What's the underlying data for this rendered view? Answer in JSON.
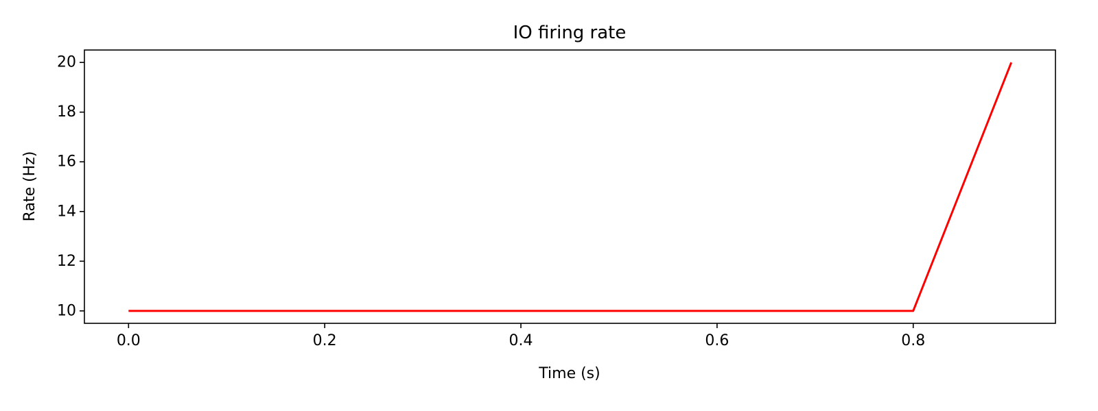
{
  "chart_data": {
    "type": "line",
    "title": "IO firing rate",
    "xlabel": "Time (s)",
    "ylabel": "Rate (Hz)",
    "xlim": [
      -0.045,
      0.945
    ],
    "ylim": [
      9.5,
      20.5
    ],
    "xticks": [
      0.0,
      0.2,
      0.4,
      0.6,
      0.8
    ],
    "xtick_labels": [
      "0.0",
      "0.2",
      "0.4",
      "0.6",
      "0.8"
    ],
    "yticks": [
      10,
      12,
      14,
      16,
      18,
      20
    ],
    "ytick_labels": [
      "10",
      "12",
      "14",
      "16",
      "18",
      "20"
    ],
    "grid": false,
    "series": [
      {
        "color": "#ff0000",
        "x": [
          0.0,
          0.8,
          0.9
        ],
        "y": [
          10,
          10,
          20
        ]
      }
    ]
  }
}
